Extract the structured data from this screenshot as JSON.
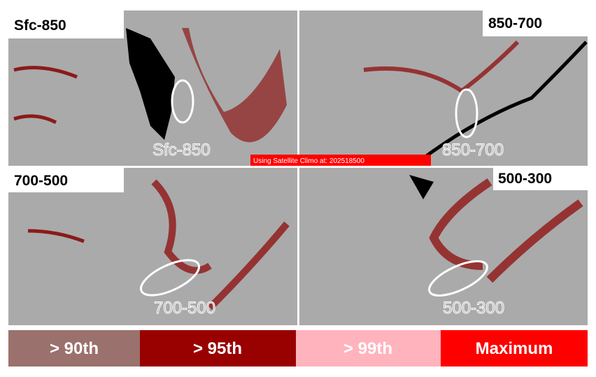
{
  "panels": [
    {
      "label": "Sfc-850",
      "overlay": "Sfc-850"
    },
    {
      "label": "850-700",
      "overlay": "850-700"
    },
    {
      "label": "700-500",
      "overlay": "700-500"
    },
    {
      "label": "500-300",
      "overlay": "500-300"
    }
  ],
  "banner": "Using Satellite Climo at: 202518500",
  "legend": [
    "> 90th",
    "> 95th",
    "> 99th",
    "Maximum"
  ]
}
